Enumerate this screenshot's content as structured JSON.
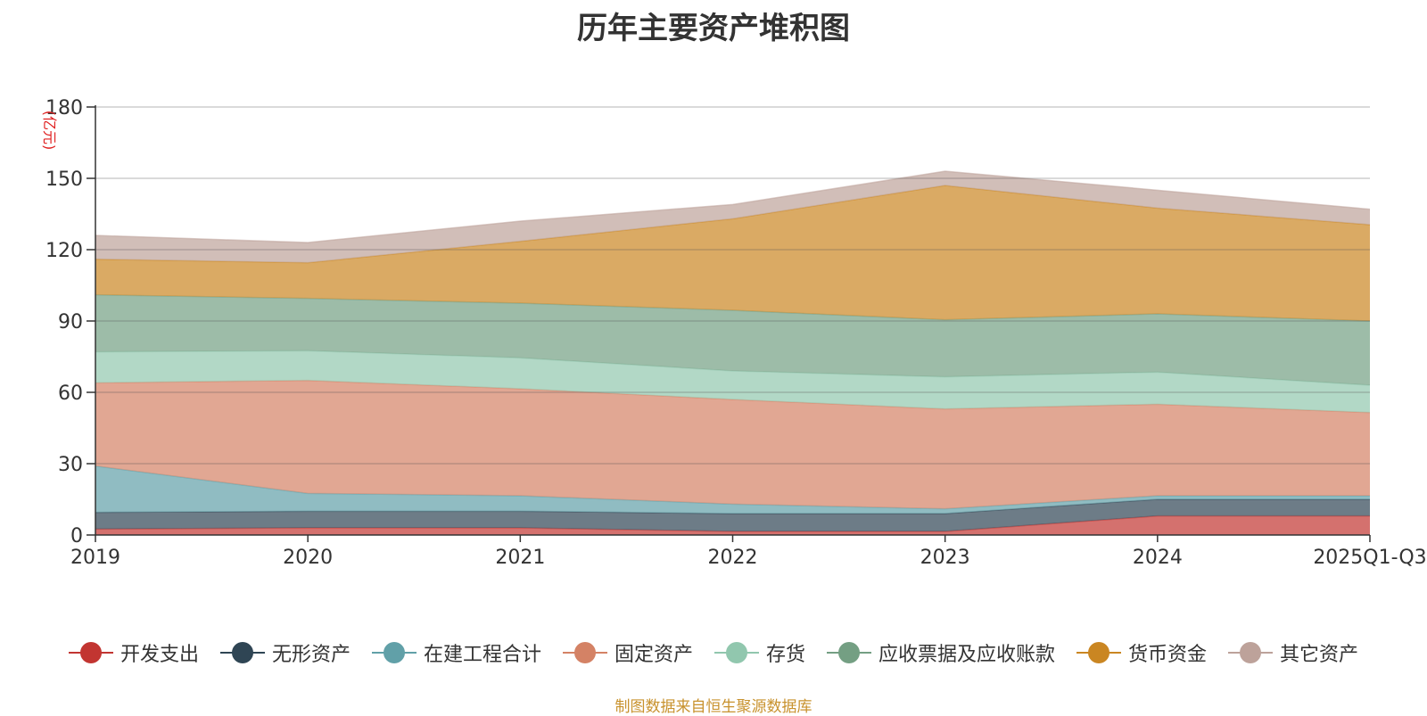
{
  "chart_data": {
    "type": "area",
    "stacked": true,
    "title": "历年主要资产堆积图",
    "ylabel": "(亿元)",
    "xlabel": "",
    "ylim": [
      0,
      180
    ],
    "yticks": [
      0,
      30,
      60,
      90,
      120,
      150,
      180
    ],
    "categories": [
      "2019",
      "2020",
      "2021",
      "2022",
      "2023",
      "2024",
      "2025Q1-Q3"
    ],
    "grid": true,
    "legend_position": "bottom",
    "series": [
      {
        "name": "开发支出",
        "color": "#c23531",
        "values": [
          2.5,
          3,
          3,
          1.5,
          1.5,
          8,
          8
        ]
      },
      {
        "name": "无形资产",
        "color": "#2f4554",
        "values": [
          7,
          7,
          7,
          7.5,
          7.5,
          7,
          7
        ]
      },
      {
        "name": "在建工程合计",
        "color": "#61a0a8",
        "values": [
          19.5,
          7.5,
          6.5,
          4,
          2,
          1.5,
          1.5
        ]
      },
      {
        "name": "固定资产",
        "color": "#d48265",
        "values": [
          35,
          47.5,
          45,
          44,
          42,
          38.5,
          35
        ]
      },
      {
        "name": "存货",
        "color": "#91c7ae",
        "values": [
          13,
          12.5,
          13,
          12,
          13.5,
          13.5,
          11.5
        ]
      },
      {
        "name": "应收票据及应收账款",
        "color": "#749f83",
        "values": [
          24,
          22,
          23,
          25.5,
          24,
          24.5,
          27
        ]
      },
      {
        "name": "货币资金",
        "color": "#ca8622",
        "values": [
          15,
          15,
          26,
          38.5,
          56.5,
          44.5,
          40.5
        ]
      },
      {
        "name": "其它资产",
        "color": "#bda29a",
        "values": [
          10,
          8.5,
          8.5,
          6,
          6,
          7.5,
          6.5
        ]
      }
    ]
  },
  "source_note": "制图数据来自恒生聚源数据库"
}
